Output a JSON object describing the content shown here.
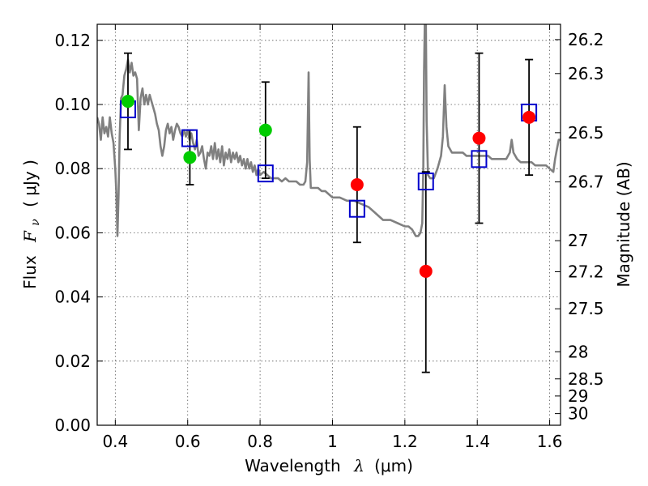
{
  "chart_data": {
    "type": "scatter",
    "xlabel_prefix": "Wavelength",
    "xlabel_symbol": "λ",
    "xlabel_unit": "(μm)",
    "ylabel_prefix": "Flux",
    "ylabel_symbol": "F",
    "ylabel_sub": "ν",
    "ylabel_unit": "( μJy )",
    "ylabel_right": "Magnitude (AB)",
    "xlim": [
      0.35,
      1.63
    ],
    "ylim": [
      0.0,
      0.125
    ],
    "grid": true,
    "x_ticks": [
      {
        "value": 0.4,
        "label": "0.4"
      },
      {
        "value": 0.6,
        "label": "0.6"
      },
      {
        "value": 0.8,
        "label": "0.8"
      },
      {
        "value": 1.0,
        "label": "1"
      },
      {
        "value": 1.2,
        "label": "1.2"
      },
      {
        "value": 1.4,
        "label": "1.4"
      },
      {
        "value": 1.6,
        "label": "1.6"
      }
    ],
    "y_ticks": [
      {
        "value": 0.0,
        "label": "0.00"
      },
      {
        "value": 0.02,
        "label": "0.02"
      },
      {
        "value": 0.04,
        "label": "0.04"
      },
      {
        "value": 0.06,
        "label": "0.06"
      },
      {
        "value": 0.08,
        "label": "0.08"
      },
      {
        "value": 0.1,
        "label": "0.10"
      },
      {
        "value": 0.12,
        "label": "0.12"
      }
    ],
    "right_ticks": [
      {
        "label": "26.2",
        "mag": 26.2
      },
      {
        "label": "26.3",
        "mag": 26.3
      },
      {
        "label": "26.5",
        "mag": 26.5
      },
      {
        "label": "26.7",
        "mag": 26.7
      },
      {
        "label": "27",
        "mag": 27.0
      },
      {
        "label": "27.2",
        "mag": 27.2
      },
      {
        "label": "27.5",
        "mag": 27.5
      },
      {
        "label": "28",
        "mag": 28.0
      },
      {
        "label": "28.5",
        "mag": 28.5
      },
      {
        "label": "29",
        "mag": 29.0
      },
      {
        "label": "30",
        "mag": 30.0
      }
    ],
    "series": [
      {
        "name": "model spectrum",
        "kind": "line",
        "color": "#808080",
        "points": [
          [
            0.35,
            0.096
          ],
          [
            0.355,
            0.094
          ],
          [
            0.36,
            0.089
          ],
          [
            0.365,
            0.096
          ],
          [
            0.37,
            0.091
          ],
          [
            0.375,
            0.093
          ],
          [
            0.38,
            0.09
          ],
          [
            0.385,
            0.096
          ],
          [
            0.39,
            0.091
          ],
          [
            0.395,
            0.088
          ],
          [
            0.4,
            0.08
          ],
          [
            0.403,
            0.072
          ],
          [
            0.406,
            0.059
          ],
          [
            0.409,
            0.072
          ],
          [
            0.412,
            0.09
          ],
          [
            0.416,
            0.102
          ],
          [
            0.42,
            0.103
          ],
          [
            0.425,
            0.109
          ],
          [
            0.43,
            0.111
          ],
          [
            0.435,
            0.114
          ],
          [
            0.44,
            0.11
          ],
          [
            0.445,
            0.113
          ],
          [
            0.45,
            0.109
          ],
          [
            0.455,
            0.11
          ],
          [
            0.46,
            0.108
          ],
          [
            0.465,
            0.092
          ],
          [
            0.47,
            0.102
          ],
          [
            0.475,
            0.105
          ],
          [
            0.48,
            0.1
          ],
          [
            0.485,
            0.103
          ],
          [
            0.49,
            0.1
          ],
          [
            0.495,
            0.103
          ],
          [
            0.5,
            0.101
          ],
          [
            0.505,
            0.099
          ],
          [
            0.51,
            0.097
          ],
          [
            0.515,
            0.094
          ],
          [
            0.52,
            0.092
          ],
          [
            0.525,
            0.087
          ],
          [
            0.53,
            0.084
          ],
          [
            0.535,
            0.087
          ],
          [
            0.54,
            0.092
          ],
          [
            0.545,
            0.094
          ],
          [
            0.55,
            0.091
          ],
          [
            0.555,
            0.093
          ],
          [
            0.56,
            0.089
          ],
          [
            0.565,
            0.092
          ],
          [
            0.57,
            0.094
          ],
          [
            0.575,
            0.093
          ],
          [
            0.58,
            0.091
          ],
          [
            0.585,
            0.09
          ],
          [
            0.59,
            0.092
          ],
          [
            0.595,
            0.09
          ],
          [
            0.6,
            0.092
          ],
          [
            0.605,
            0.089
          ],
          [
            0.61,
            0.091
          ],
          [
            0.615,
            0.088
          ],
          [
            0.62,
            0.086
          ],
          [
            0.625,
            0.089
          ],
          [
            0.63,
            0.084
          ],
          [
            0.635,
            0.085
          ],
          [
            0.64,
            0.087
          ],
          [
            0.645,
            0.083
          ],
          [
            0.65,
            0.08
          ],
          [
            0.655,
            0.085
          ],
          [
            0.66,
            0.084
          ],
          [
            0.665,
            0.087
          ],
          [
            0.67,
            0.083
          ],
          [
            0.675,
            0.088
          ],
          [
            0.68,
            0.083
          ],
          [
            0.685,
            0.086
          ],
          [
            0.69,
            0.082
          ],
          [
            0.695,
            0.087
          ],
          [
            0.7,
            0.081
          ],
          [
            0.705,
            0.085
          ],
          [
            0.71,
            0.083
          ],
          [
            0.715,
            0.086
          ],
          [
            0.72,
            0.082
          ],
          [
            0.725,
            0.085
          ],
          [
            0.73,
            0.083
          ],
          [
            0.735,
            0.085
          ],
          [
            0.74,
            0.082
          ],
          [
            0.745,
            0.084
          ],
          [
            0.75,
            0.081
          ],
          [
            0.755,
            0.083
          ],
          [
            0.76,
            0.08
          ],
          [
            0.765,
            0.083
          ],
          [
            0.77,
            0.08
          ],
          [
            0.775,
            0.082
          ],
          [
            0.78,
            0.079
          ],
          [
            0.785,
            0.081
          ],
          [
            0.79,
            0.078
          ],
          [
            0.795,
            0.08
          ],
          [
            0.8,
            0.078
          ],
          [
            0.81,
            0.079
          ],
          [
            0.82,
            0.078
          ],
          [
            0.83,
            0.077
          ],
          [
            0.84,
            0.077
          ],
          [
            0.85,
            0.077
          ],
          [
            0.86,
            0.076
          ],
          [
            0.87,
            0.077
          ],
          [
            0.88,
            0.076
          ],
          [
            0.89,
            0.076
          ],
          [
            0.9,
            0.076
          ],
          [
            0.91,
            0.075
          ],
          [
            0.92,
            0.075
          ],
          [
            0.925,
            0.076
          ],
          [
            0.93,
            0.082
          ],
          [
            0.934,
            0.11
          ],
          [
            0.937,
            0.083
          ],
          [
            0.94,
            0.074
          ],
          [
            0.95,
            0.074
          ],
          [
            0.96,
            0.074
          ],
          [
            0.97,
            0.073
          ],
          [
            0.98,
            0.073
          ],
          [
            0.99,
            0.072
          ],
          [
            1.0,
            0.071
          ],
          [
            1.02,
            0.071
          ],
          [
            1.04,
            0.07
          ],
          [
            1.06,
            0.07
          ],
          [
            1.08,
            0.069
          ],
          [
            1.1,
            0.068
          ],
          [
            1.12,
            0.066
          ],
          [
            1.14,
            0.064
          ],
          [
            1.16,
            0.064
          ],
          [
            1.18,
            0.063
          ],
          [
            1.2,
            0.062
          ],
          [
            1.21,
            0.062
          ],
          [
            1.22,
            0.061
          ],
          [
            1.23,
            0.059
          ],
          [
            1.237,
            0.059
          ],
          [
            1.243,
            0.06
          ],
          [
            1.248,
            0.063
          ],
          [
            1.251,
            0.08
          ],
          [
            1.253,
            0.11
          ],
          [
            1.255,
            0.125
          ],
          [
            1.258,
            0.125
          ],
          [
            1.26,
            0.095
          ],
          [
            1.264,
            0.078
          ],
          [
            1.27,
            0.077
          ],
          [
            1.28,
            0.077
          ],
          [
            1.29,
            0.08
          ],
          [
            1.3,
            0.084
          ],
          [
            1.305,
            0.09
          ],
          [
            1.31,
            0.106
          ],
          [
            1.315,
            0.093
          ],
          [
            1.32,
            0.087
          ],
          [
            1.33,
            0.085
          ],
          [
            1.34,
            0.085
          ],
          [
            1.35,
            0.085
          ],
          [
            1.36,
            0.085
          ],
          [
            1.37,
            0.084
          ],
          [
            1.38,
            0.084
          ],
          [
            1.39,
            0.084
          ],
          [
            1.4,
            0.084
          ],
          [
            1.41,
            0.084
          ],
          [
            1.42,
            0.084
          ],
          [
            1.43,
            0.084
          ],
          [
            1.44,
            0.083
          ],
          [
            1.45,
            0.083
          ],
          [
            1.46,
            0.083
          ],
          [
            1.47,
            0.083
          ],
          [
            1.48,
            0.083
          ],
          [
            1.49,
            0.085
          ],
          [
            1.495,
            0.089
          ],
          [
            1.5,
            0.085
          ],
          [
            1.51,
            0.083
          ],
          [
            1.52,
            0.082
          ],
          [
            1.53,
            0.082
          ],
          [
            1.54,
            0.082
          ],
          [
            1.55,
            0.082
          ],
          [
            1.56,
            0.081
          ],
          [
            1.57,
            0.081
          ],
          [
            1.58,
            0.081
          ],
          [
            1.59,
            0.081
          ],
          [
            1.6,
            0.08
          ],
          [
            1.61,
            0.079
          ],
          [
            1.615,
            0.083
          ],
          [
            1.62,
            0.086
          ],
          [
            1.625,
            0.089
          ],
          [
            1.63,
            0.089
          ]
        ]
      },
      {
        "name": "model photometry",
        "kind": "square",
        "color": "#0000cc",
        "points": [
          [
            0.435,
            0.0985
          ],
          [
            0.605,
            0.0895
          ],
          [
            0.815,
            0.0785
          ],
          [
            1.068,
            0.0675
          ],
          [
            1.258,
            0.076
          ],
          [
            1.405,
            0.083
          ],
          [
            1.543,
            0.0975
          ]
        ]
      },
      {
        "name": "observed (green)",
        "kind": "circle",
        "color": "#00cc00",
        "points": [
          {
            "x": 0.435,
            "y": 0.101,
            "yerr_low": 0.086,
            "yerr_high": 0.116
          },
          {
            "x": 0.606,
            "y": 0.0835,
            "yerr_low": 0.075,
            "yerr_high": 0.092
          },
          {
            "x": 0.815,
            "y": 0.092,
            "yerr_low": 0.077,
            "yerr_high": 0.107
          }
        ]
      },
      {
        "name": "observed (red)",
        "kind": "circle",
        "color": "#ff0000",
        "points": [
          {
            "x": 1.068,
            "y": 0.075,
            "yerr_low": 0.057,
            "yerr_high": 0.093
          },
          {
            "x": 1.258,
            "y": 0.048,
            "yerr_low": 0.0165,
            "yerr_high": 0.079
          },
          {
            "x": 1.405,
            "y": 0.0895,
            "yerr_low": 0.063,
            "yerr_high": 0.116
          },
          {
            "x": 1.543,
            "y": 0.096,
            "yerr_low": 0.078,
            "yerr_high": 0.114
          }
        ]
      }
    ]
  }
}
